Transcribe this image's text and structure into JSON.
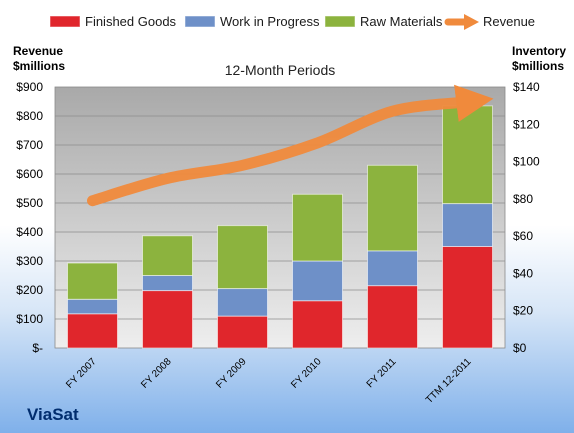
{
  "chart_data": {
    "type": "bar",
    "stacked": true,
    "title": "12-Month Periods",
    "company": "ViaSat",
    "categories": [
      "FY 2007",
      "FY 2008",
      "FY 2009",
      "FY 2010",
      "FY 2011",
      "TTM 12-2011"
    ],
    "left_axis": {
      "title_line1": "Revenue",
      "title_line2": "$millions",
      "min": 0,
      "max": 900,
      "step": 100,
      "ticks": [
        "$-",
        "$100",
        "$200",
        "$300",
        "$400",
        "$500",
        "$600",
        "$700",
        "$800",
        "$900"
      ]
    },
    "right_axis": {
      "title_line1": "Inventory",
      "title_line2": "$millions",
      "min": 0,
      "max": 140,
      "step": 20,
      "ticks": [
        "$0",
        "$20",
        "$40",
        "$60",
        "$80",
        "$100",
        "$120",
        "$140"
      ]
    },
    "series": [
      {
        "name": "Finished Goods",
        "type": "bar",
        "axis": "left",
        "color": "#e0262c",
        "values": [
          118,
          198,
          110,
          163,
          215,
          350
        ]
      },
      {
        "name": "Work in Progress",
        "type": "bar",
        "axis": "left",
        "color": "#6e90c8",
        "values": [
          50,
          52,
          95,
          137,
          120,
          148
        ]
      },
      {
        "name": "Raw Materials",
        "type": "bar",
        "axis": "left",
        "color": "#8cb33e",
        "values": [
          125,
          137,
          217,
          230,
          295,
          337
        ]
      },
      {
        "name": "Revenue",
        "type": "line",
        "axis": "right",
        "color": "#f08a3c",
        "values": [
          79,
          91,
          98,
          110,
          127,
          132
        ]
      }
    ],
    "grid": true,
    "legend_position": "top"
  }
}
